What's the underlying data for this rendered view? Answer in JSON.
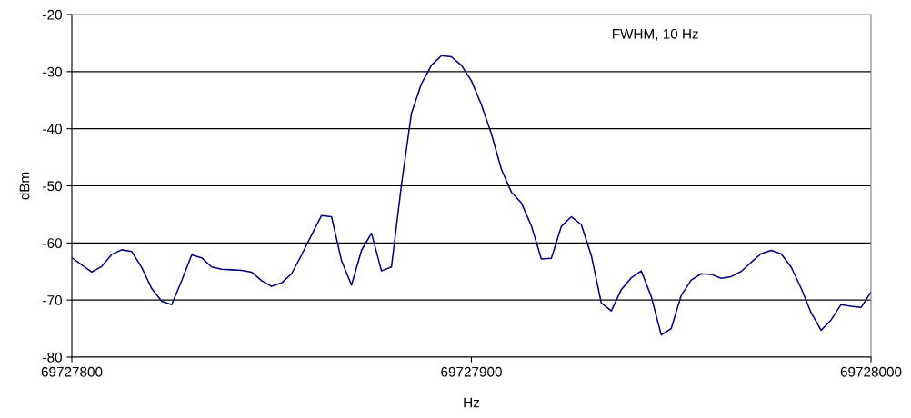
{
  "chart_data": {
    "type": "line",
    "xlabel": "Hz",
    "ylabel": "dBm",
    "annotations": [
      "FWHM, 10 Hz"
    ],
    "x": [
      69727800,
      69727805,
      69727807.5,
      69727810,
      69727812.5,
      69727815,
      69727817.5,
      69727820,
      69727822.5,
      69727825,
      69727827.5,
      69727830,
      69727832.5,
      69727835,
      69727837.5,
      69727840,
      69727842.5,
      69727845,
      69727847.5,
      69727850,
      69727852.5,
      69727855,
      69727857.5,
      69727860,
      69727862.5,
      69727865,
      69727867.5,
      69727870,
      69727872.5,
      69727875,
      69727877.5,
      69727880,
      69727882.5,
      69727885,
      69727887.5,
      69727890,
      69727892.5,
      69727895,
      69727897.5,
      69727900,
      69727902.5,
      69727905,
      69727907.5,
      69727910,
      69727912.5,
      69727915,
      69727917.5,
      69727920,
      69727922.5,
      69727925,
      69727927.5,
      69727930,
      69727932.5,
      69727935,
      69727937.5,
      69727940,
      69727942.5,
      69727945,
      69727947.5,
      69727950,
      69727952.5,
      69727955,
      69727957.5,
      69727960,
      69727962.5,
      69727965,
      69727967.5,
      69727970,
      69727972.5,
      69727975,
      69727977.5,
      69727980,
      69727982.5,
      69727985,
      69727987.5,
      69727990,
      69727992.5,
      69727995,
      69727997.5,
      69728000
    ],
    "series": [
      {
        "color": "#000080",
        "values": [
          -62.6,
          -65.1,
          -64.1,
          -62.0,
          -61.2,
          -61.5,
          -64.3,
          -68.0,
          -70.2,
          -70.8,
          -66.6,
          -62.1,
          -62.6,
          -64.2,
          -64.6,
          -64.7,
          -64.8,
          -65.1,
          -66.6,
          -67.6,
          -67.0,
          -65.4,
          -62.1,
          -58.6,
          -55.2,
          -55.4,
          -63.1,
          -67.4,
          -61.3,
          -58.3,
          -64.9,
          -64.2,
          -49.8,
          -37.3,
          -32.1,
          -28.9,
          -27.2,
          -27.4,
          -28.9,
          -31.6,
          -35.8,
          -40.9,
          -47.1,
          -51.1,
          -53.0,
          -57.0,
          -62.8,
          -62.7,
          -57.1,
          -55.4,
          -56.8,
          -62.2,
          -70.5,
          -71.9,
          -68.2,
          -66.1,
          -64.9,
          -69.4,
          -76.1,
          -75.0,
          -69.2,
          -66.5,
          -65.4,
          -65.5,
          -66.2,
          -65.9,
          -65.0,
          -63.4,
          -61.9,
          -61.3,
          -61.9,
          -64.2,
          -67.9,
          -72.2,
          -75.3,
          -73.5,
          -70.8,
          -71.1,
          -71.3,
          -68.6
        ]
      }
    ],
    "xlim": [
      69727800,
      69728000
    ],
    "xticks": [
      69727800,
      69727900,
      69728000
    ],
    "ylim": [
      -80,
      -20
    ],
    "yticks": [
      -80,
      -70,
      -60,
      -50,
      -40,
      -30,
      -20
    ],
    "grid": "y",
    "marker": "none",
    "line_style": "solid"
  }
}
